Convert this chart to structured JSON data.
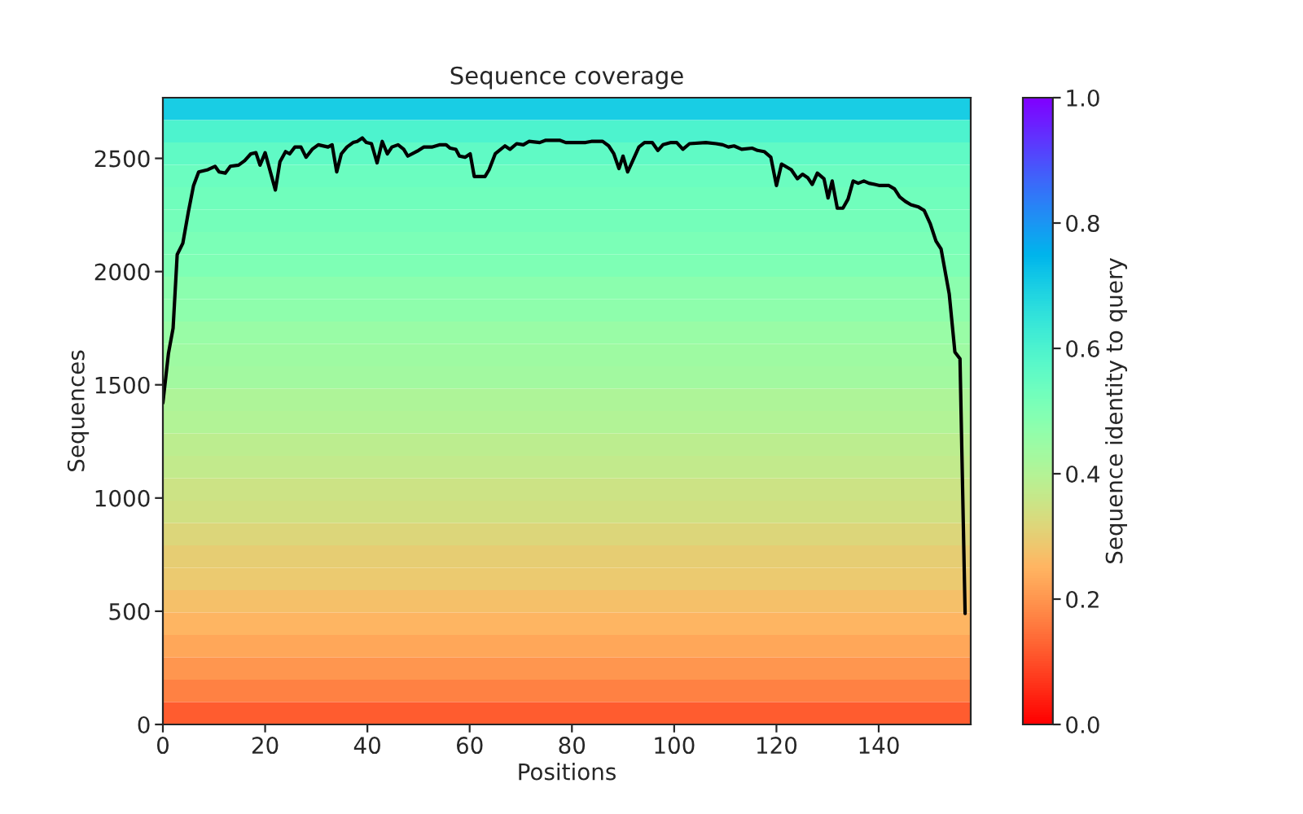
{
  "chart_data": {
    "type": "heatmap",
    "title": "Sequence coverage",
    "xlabel": "Positions",
    "ylabel": "Sequences",
    "clabel": "Sequence identity to query",
    "xlim": [
      0,
      158
    ],
    "ylim": [
      0,
      2768
    ],
    "xticks": [
      0,
      20,
      40,
      60,
      80,
      100,
      120,
      140
    ],
    "yticks": [
      0,
      500,
      1000,
      1500,
      2000,
      2500
    ],
    "clim": [
      0,
      1
    ],
    "cticks": [
      {
        "value": 0,
        "label": "0.0"
      },
      {
        "value": 0.2,
        "label": "0.2"
      },
      {
        "value": 0.4,
        "label": "0.4"
      },
      {
        "value": 0.6,
        "label": "0.6"
      },
      {
        "value": 0.8,
        "label": "0.8"
      },
      {
        "value": 1,
        "label": "1.0"
      }
    ],
    "cells": [
      [
        0.7
      ],
      [
        0.6
      ],
      [
        0.56
      ],
      [
        0.54
      ],
      [
        0.53
      ],
      [
        0.52
      ],
      [
        0.51
      ],
      [
        0.5
      ],
      [
        0.48
      ],
      [
        0.47
      ],
      [
        0.45
      ],
      [
        0.44
      ],
      [
        0.43
      ],
      [
        0.41
      ],
      [
        0.4
      ],
      [
        0.38
      ],
      [
        0.37
      ],
      [
        0.35
      ],
      [
        0.34
      ],
      [
        0.32
      ],
      [
        0.3
      ],
      [
        0.29
      ],
      [
        0.27
      ],
      [
        0.25
      ],
      [
        0.23
      ],
      [
        0.2
      ],
      [
        0.17
      ],
      [
        0.12
      ]
    ],
    "series": [
      {
        "type": "line",
        "color": "#000000",
        "x": [
          0,
          1.1,
          2,
          2.8,
          3.9,
          5,
          6,
          7,
          8.8,
          10.2,
          11,
          12.2,
          13.2,
          14.8,
          16,
          17.2,
          18.2,
          19,
          20,
          22,
          22.9,
          24,
          24.8,
          25.8,
          27,
          28,
          29.2,
          30.4,
          32.3,
          33.1,
          34,
          34.9,
          36,
          37.2,
          38,
          39,
          39.8,
          40.8,
          41.9,
          42.9,
          43.9,
          44.8,
          46,
          47.1,
          47.9,
          50,
          51,
          52.6,
          54.2,
          55.4,
          56.2,
          57.3,
          58,
          59.1,
          60.1,
          60.9,
          63,
          63.8,
          65,
          66.9,
          67.9,
          69.2,
          70.5,
          71.6,
          73.7,
          74.9,
          77.6,
          78.8,
          82.7,
          83.8,
          86,
          87.2,
          88.2,
          89.2,
          90,
          90.9,
          91.9,
          93.1,
          94.2,
          95.7,
          96.8,
          97.8,
          99.4,
          100.5,
          101.7,
          103,
          106.2,
          108.2,
          109.5,
          110.6,
          111.7,
          113.2,
          115.3,
          116.3,
          117.6,
          118.9,
          120,
          121,
          122.9,
          124.1,
          125.1,
          126.1,
          127,
          128,
          129.3,
          130.1,
          130.9,
          131.9,
          133,
          134,
          135,
          136,
          137.1,
          138.1,
          139.2,
          140.2,
          142,
          143.1,
          144.1,
          145.2,
          146.3,
          147.8,
          148.9,
          150.1,
          151.2,
          152.2,
          153.8,
          154.9,
          155.9,
          156.9
        ],
        "values": [
          1420,
          1640,
          1750,
          2075,
          2125,
          2265,
          2380,
          2440,
          2450,
          2465,
          2440,
          2435,
          2465,
          2470,
          2490,
          2520,
          2525,
          2470,
          2525,
          2360,
          2485,
          2530,
          2520,
          2550,
          2550,
          2505,
          2540,
          2560,
          2550,
          2560,
          2440,
          2520,
          2550,
          2570,
          2575,
          2590,
          2570,
          2565,
          2480,
          2575,
          2520,
          2550,
          2560,
          2540,
          2510,
          2535,
          2550,
          2550,
          2560,
          2560,
          2545,
          2540,
          2510,
          2505,
          2520,
          2420,
          2420,
          2450,
          2520,
          2555,
          2540,
          2565,
          2560,
          2575,
          2570,
          2580,
          2580,
          2570,
          2570,
          2575,
          2575,
          2555,
          2520,
          2455,
          2510,
          2440,
          2490,
          2550,
          2570,
          2570,
          2535,
          2560,
          2570,
          2570,
          2540,
          2565,
          2570,
          2565,
          2560,
          2550,
          2555,
          2540,
          2545,
          2535,
          2530,
          2505,
          2380,
          2475,
          2450,
          2410,
          2430,
          2415,
          2385,
          2435,
          2410,
          2325,
          2400,
          2280,
          2280,
          2320,
          2400,
          2390,
          2400,
          2390,
          2385,
          2380,
          2380,
          2365,
          2330,
          2310,
          2295,
          2285,
          2270,
          2210,
          2135,
          2100,
          1900,
          1645,
          1615,
          490
        ]
      }
    ]
  }
}
